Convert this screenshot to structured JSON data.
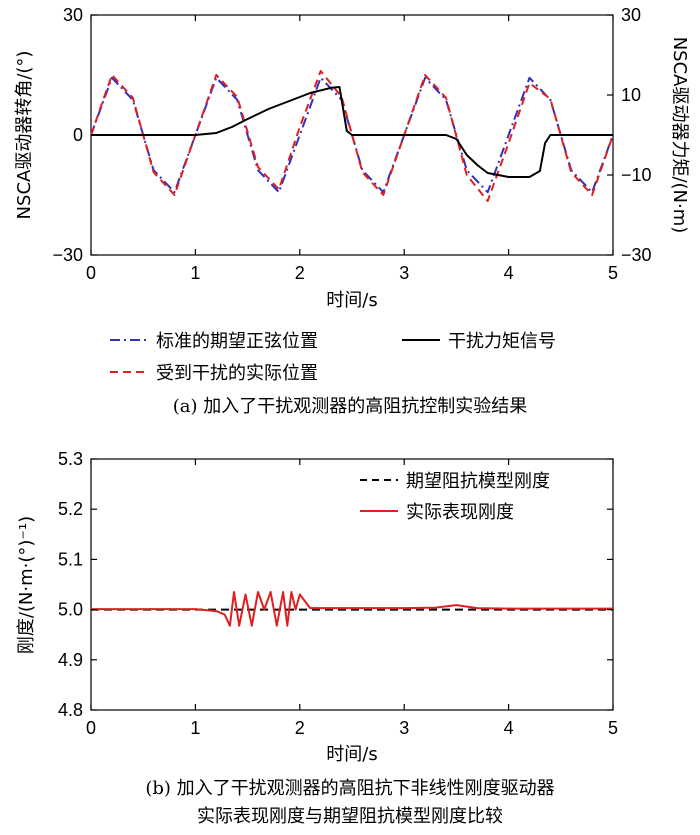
{
  "chart_data": [
    {
      "type": "line",
      "xlabel": "时间/s",
      "ylabel": "NSCA驱动器转角/(°)",
      "y2label": "NSCA驱动器力矩/(N·m)",
      "xlim": [
        0,
        5
      ],
      "ylim": [
        -30,
        30
      ],
      "y2lim": [
        -30,
        30
      ],
      "xticks": [
        "0",
        "1",
        "2",
        "3",
        "4",
        "5"
      ],
      "yticks": [
        "−30",
        "0",
        "30"
      ],
      "y2ticks": [
        "−30",
        "−10",
        "10",
        "30"
      ],
      "grid": false,
      "legend_position": "below",
      "series": [
        {
          "name": "标准的期望正弦位置",
          "color": "#3030c0",
          "dash": "dashdot",
          "axis": "left",
          "x": [
            0,
            0.2,
            0.4,
            0.6,
            0.8,
            1.0,
            1.2,
            1.4,
            1.6,
            1.8,
            2.0,
            2.2,
            2.4,
            2.6,
            2.8,
            3.0,
            3.2,
            3.4,
            3.6,
            3.8,
            4.0,
            4.2,
            4.4,
            4.6,
            4.8,
            5.0
          ],
          "y": [
            0,
            14.3,
            8.8,
            -8.8,
            -14.3,
            0,
            14.3,
            8.8,
            -8.8,
            -14.3,
            0,
            14.3,
            8.8,
            -8.8,
            -14.3,
            0,
            14.3,
            8.8,
            -8.8,
            -14.3,
            0,
            14.3,
            8.8,
            -8.8,
            -14.3,
            0
          ]
        },
        {
          "name": "受到干扰的实际位置",
          "color": "#e02020",
          "dash": "dashed",
          "axis": "left",
          "x": [
            0,
            0.2,
            0.4,
            0.6,
            0.8,
            1.0,
            1.2,
            1.4,
            1.6,
            1.8,
            2.0,
            2.2,
            2.4,
            2.6,
            2.8,
            3.0,
            3.2,
            3.4,
            3.6,
            3.8,
            4.0,
            4.2,
            4.4,
            4.6,
            4.8,
            5.0
          ],
          "y": [
            0,
            15,
            9.3,
            -9.3,
            -15,
            0,
            15,
            9.5,
            -8.0,
            -13.6,
            2,
            16,
            9.5,
            -9.3,
            -15,
            0,
            15,
            9.3,
            -10.0,
            -16.5,
            -2,
            13,
            9.0,
            -9.3,
            -15,
            0
          ]
        },
        {
          "name": "干扰力矩信号",
          "color": "#000000",
          "dash": "solid",
          "axis": "right",
          "x": [
            0,
            1.0,
            1.2,
            1.35,
            1.5,
            1.7,
            1.9,
            2.1,
            2.3,
            2.38,
            2.45,
            2.5,
            2.6,
            3.0,
            3.4,
            3.5,
            3.6,
            3.7,
            3.8,
            4.0,
            4.2,
            4.3,
            4.35,
            4.4,
            4.5,
            5.0
          ],
          "y": [
            0,
            0,
            0.5,
            2,
            4,
            6.5,
            8.5,
            10.5,
            11.8,
            12,
            1,
            0,
            0,
            0,
            0,
            -1,
            -5,
            -7.5,
            -9.5,
            -10.5,
            -10.5,
            -9,
            -2,
            0,
            0,
            0
          ]
        }
      ]
    },
    {
      "type": "line",
      "xlabel": "时间/s",
      "ylabel": "刚度/(N·m·(°)⁻¹)",
      "xlim": [
        0,
        5
      ],
      "ylim": [
        4.8,
        5.3
      ],
      "xticks": [
        "0",
        "1",
        "2",
        "3",
        "4",
        "5"
      ],
      "yticks": [
        "4.8",
        "4.9",
        "5.0",
        "5.1",
        "5.2",
        "5.3"
      ],
      "grid": false,
      "legend_position": "top-right",
      "series": [
        {
          "name": "期望阻抗模型刚度",
          "color": "#000000",
          "dash": "dashed",
          "x": [
            0,
            5
          ],
          "y": [
            5.0,
            5.0
          ]
        },
        {
          "name": "实际表现刚度",
          "color": "#e02020",
          "dash": "solid",
          "x": [
            0,
            0.4,
            0.8,
            1.0,
            1.2,
            1.28,
            1.33,
            1.37,
            1.42,
            1.48,
            1.54,
            1.6,
            1.66,
            1.72,
            1.78,
            1.84,
            1.88,
            1.92,
            1.96,
            2.0,
            2.1,
            2.5,
            3.0,
            3.3,
            3.5,
            3.7,
            4.0,
            4.5,
            5.0
          ],
          "y": [
            5.001,
            5.001,
            5.001,
            5.001,
            4.997,
            4.99,
            4.968,
            5.035,
            4.968,
            5.03,
            4.968,
            5.035,
            5.0,
            5.035,
            4.968,
            5.035,
            4.968,
            5.035,
            5.0,
            5.03,
            5.003,
            5.003,
            5.003,
            5.004,
            5.009,
            5.003,
            5.002,
            5.002,
            5.002
          ]
        }
      ]
    }
  ],
  "captions": {
    "top": "(a) 加入了干扰观测器的高阻抗控制实验结果",
    "bottom_line1": "(b) 加入了干扰观测器的高阻抗下非线性刚度驱动器",
    "bottom_line2": "实际表现刚度与期望阻抗模型刚度比较"
  }
}
